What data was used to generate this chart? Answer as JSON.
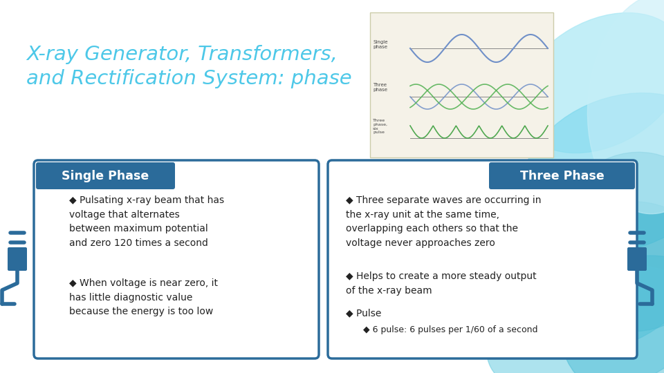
{
  "title_line1": "X-ray Generator, Transformers,",
  "title_line2": "and Rectification System: phase",
  "title_color": "#4DC8E8",
  "bg_color": "#FFFFFF",
  "left_header": "Single Phase",
  "right_header": "Three Phase",
  "header_bg": "#2B6B9A",
  "header_text_color": "#FFFFFF",
  "box_border_color": "#2B6B9A",
  "box_bg_color": "#FFFFFF",
  "plug_color": "#2B6B9A",
  "left_bullet1": "Pulsating x-ray beam that has\nvoltage that alternates\nbetween maximum potential\nand zero 120 times a second",
  "left_bullet2": "When voltage is near zero, it\nhas little diagnostic value\nbecause the energy is too low",
  "right_bullet1": "Three separate waves are occurring in\nthe x-ray unit at the same time,\noverlapping each others so that the\nvoltage never approaches zero",
  "right_bullet2": "Helps to create a more steady output\nof the x-ray beam",
  "right_bullet3": "Pulse",
  "sub_bullet": "6 pulse: 6 pulses per 1/60 of a second",
  "swirl_colors": [
    "#5BC8DE",
    "#7DD4E8",
    "#A8E4F0",
    "#C5EEF8",
    "#3CAEC8",
    "#6EC8DC"
  ],
  "wave_bg": "#F5F2E8",
  "single_wave_color": "#7090C8",
  "three_phase_colors": [
    "#7090C8",
    "#50B850",
    "#50B850"
  ],
  "six_pulse_color": "#50A850"
}
